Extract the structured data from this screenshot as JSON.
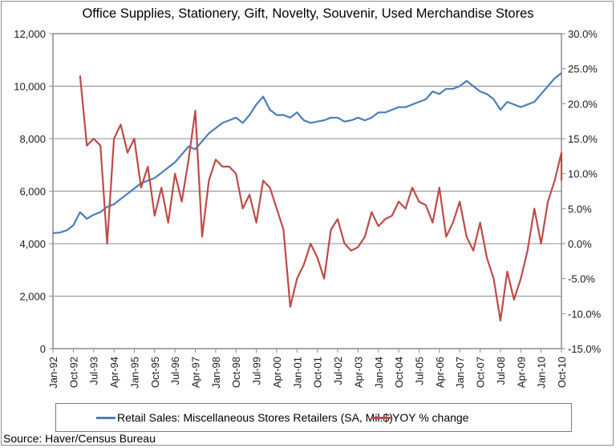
{
  "chart_data": {
    "type": "line",
    "title": "Office Supplies, Stationery, Gift, Novelty, Souvenir, Used Merchandise Stores",
    "xlabel": "",
    "ylabel_left": "",
    "ylabel_right": "",
    "y_left_lim": [
      0,
      12000
    ],
    "y_right_lim": [
      -15,
      30
    ],
    "y_left_ticks": [
      "0",
      "2,000",
      "4,000",
      "6,000",
      "8,000",
      "10,000",
      "12,000"
    ],
    "y_right_ticks": [
      "-15.0%",
      "-10.0%",
      "-5.0%",
      "0.0%",
      "5.0%",
      "10.0%",
      "15.0%",
      "20.0%",
      "25.0%",
      "30.0%"
    ],
    "x_tick_labels": [
      "Jan-92",
      "Oct-92",
      "Jul-93",
      "Apr-94",
      "Jan-95",
      "Oct-95",
      "Jul-96",
      "Apr-97",
      "Jan-98",
      "Oct-98",
      "Jul-99",
      "Apr-00",
      "Jan-01",
      "Oct-01",
      "Jul-02",
      "Apr-03",
      "Jan-04",
      "Oct-04",
      "Jul-05",
      "Apr-06",
      "Jan-07",
      "Oct-07",
      "Jul-08",
      "Apr-09",
      "Jan-10",
      "Oct-10"
    ],
    "x_range_months": [
      "Jan-92",
      "Oct-10"
    ],
    "grid": "horizontal",
    "legend_position": "bottom",
    "series": [
      {
        "name": "Retail Sales: Miscellaneous Stores Retailers (SA, Mil.$)",
        "axis": "left",
        "color": "#4a7ebb",
        "sampling": "every 3 months from Jan-92",
        "values": [
          4400,
          4420,
          4500,
          4700,
          5200,
          4950,
          5100,
          5200,
          5400,
          5500,
          5700,
          5900,
          6100,
          6300,
          6400,
          6500,
          6700,
          6900,
          7100,
          7400,
          7700,
          7600,
          7900,
          8200,
          8400,
          8600,
          8700,
          8800,
          8600,
          8900,
          9300,
          9600,
          9100,
          8900,
          8900,
          8800,
          9000,
          8700,
          8600,
          8650,
          8700,
          8800,
          8800,
          8650,
          8700,
          8800,
          8700,
          8800,
          9000,
          9000,
          9100,
          9200,
          9200,
          9300,
          9400,
          9500,
          9800,
          9700,
          9900,
          9900,
          10000,
          10200,
          10000,
          9800,
          9700,
          9500,
          9100,
          9400,
          9300,
          9200,
          9300,
          9400,
          9700,
          10000,
          10300,
          10500
        ]
      },
      {
        "name": "YOY % change",
        "axis": "right",
        "color": "#be4b48",
        "sampling": "every 3 months from Jan-93",
        "values": [
          24.0,
          14.0,
          15.0,
          14.0,
          0.0,
          15.0,
          17.0,
          13.0,
          15.0,
          8.0,
          11.0,
          4.0,
          8.0,
          3.0,
          10.0,
          6.0,
          12.0,
          19.0,
          1.0,
          9.0,
          12.0,
          11.0,
          11.0,
          10.0,
          5.0,
          7.0,
          3.0,
          9.0,
          8.0,
          5.0,
          2.0,
          -9.0,
          -5.0,
          -3.0,
          0.0,
          -2.0,
          -5.0,
          2.0,
          3.5,
          0.0,
          -1.0,
          -0.5,
          1.0,
          4.5,
          2.5,
          3.5,
          4.0,
          6.0,
          5.0,
          8.0,
          6.0,
          5.5,
          3.0,
          8.0,
          1.0,
          3.0,
          6.0,
          1.0,
          -1.0,
          3.0,
          -2.0,
          -5.0,
          -11.0,
          -4.0,
          -8.0,
          -5.0,
          -1.0,
          5.0,
          0.0,
          6.0,
          9.0,
          13.0,
          9.0
        ]
      }
    ]
  },
  "legend": {
    "items": [
      {
        "label": "Retail Sales: Miscellaneous Stores Retailers (SA, Mil.$)",
        "color": "#4a7ebb"
      },
      {
        "label": "YOY % change",
        "color": "#be4b48"
      }
    ]
  },
  "source": "Source: Haver/Census Bureau"
}
